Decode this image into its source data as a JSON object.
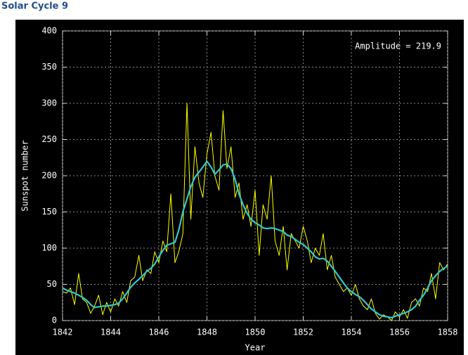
{
  "page_title": "Solar Cycle 9",
  "chart_data": {
    "type": "line",
    "annotation": "Amplitude = 219.9",
    "xlabel": "Year",
    "ylabel": "Sunspot number",
    "x": [
      1842,
      1842.17,
      1842.33,
      1842.5,
      1842.67,
      1842.83,
      1843,
      1843.17,
      1843.33,
      1843.5,
      1843.67,
      1843.83,
      1844,
      1844.17,
      1844.33,
      1844.5,
      1844.67,
      1844.83,
      1845,
      1845.17,
      1845.33,
      1845.5,
      1845.67,
      1845.83,
      1846,
      1846.17,
      1846.33,
      1846.5,
      1846.67,
      1846.83,
      1847,
      1847.17,
      1847.33,
      1847.5,
      1847.67,
      1847.83,
      1848,
      1848.17,
      1848.33,
      1848.5,
      1848.67,
      1848.83,
      1849,
      1849.17,
      1849.33,
      1849.5,
      1849.67,
      1849.83,
      1850,
      1850.17,
      1850.33,
      1850.5,
      1850.67,
      1850.83,
      1851,
      1851.17,
      1851.33,
      1851.5,
      1851.67,
      1851.83,
      1852,
      1852.17,
      1852.33,
      1852.5,
      1852.67,
      1852.83,
      1853,
      1853.17,
      1853.33,
      1853.5,
      1853.67,
      1853.83,
      1854,
      1854.17,
      1854.33,
      1854.5,
      1854.67,
      1854.83,
      1855,
      1855.17,
      1855.33,
      1855.5,
      1855.67,
      1855.83,
      1856,
      1856.17,
      1856.33,
      1856.5,
      1856.67,
      1856.83,
      1857,
      1857.17,
      1857.33,
      1857.5,
      1857.67,
      1857.83,
      1858
    ],
    "series": [
      {
        "color": "#ffff00",
        "width": 1,
        "values": [
          40,
          38,
          45,
          22,
          65,
          30,
          25,
          10,
          20,
          35,
          8,
          25,
          12,
          30,
          20,
          40,
          25,
          55,
          60,
          90,
          55,
          70,
          65,
          95,
          80,
          110,
          95,
          175,
          80,
          95,
          120,
          300,
          140,
          240,
          190,
          170,
          230,
          260,
          200,
          180,
          290,
          210,
          240,
          170,
          190,
          140,
          160,
          130,
          180,
          90,
          160,
          140,
          200,
          110,
          90,
          130,
          70,
          120,
          110,
          100,
          130,
          110,
          80,
          100,
          90,
          120,
          70,
          90,
          60,
          50,
          40,
          45,
          35,
          50,
          30,
          20,
          15,
          30,
          10,
          2,
          8,
          5,
          0,
          12,
          5,
          15,
          3,
          25,
          30,
          20,
          45,
          40,
          65,
          30,
          80,
          70,
          78
        ]
      },
      {
        "color": "#30c8d0",
        "width": 2.2,
        "values": [
          45,
          42,
          40,
          38,
          35,
          32,
          28,
          22,
          18,
          19,
          20,
          20,
          21,
          22,
          24,
          30,
          38,
          46,
          52,
          57,
          62,
          68,
          72,
          78,
          88,
          97,
          104,
          106,
          108,
          125,
          150,
          168,
          185,
          198,
          205,
          212,
          219.9,
          212,
          202,
          208,
          215,
          216,
          210,
          195,
          175,
          160,
          148,
          140,
          135,
          132,
          128,
          127,
          128,
          127,
          125,
          123,
          118,
          116,
          112,
          108,
          105,
          100,
          95,
          88,
          85,
          86,
          82,
          75,
          68,
          60,
          52,
          45,
          40,
          36,
          33,
          28,
          22,
          16,
          12,
          8,
          6,
          5,
          4,
          6,
          8,
          10,
          12,
          15,
          20,
          28,
          35,
          45,
          55,
          62,
          68,
          72,
          75
        ]
      }
    ],
    "xlim": [
      1842,
      1858
    ],
    "xticks": [
      1842,
      1844,
      1846,
      1848,
      1850,
      1852,
      1854,
      1856,
      1858
    ],
    "ylim": [
      0,
      400
    ],
    "yticks": [
      0,
      50,
      100,
      150,
      200,
      250,
      300,
      350,
      400
    ],
    "grid": true
  }
}
